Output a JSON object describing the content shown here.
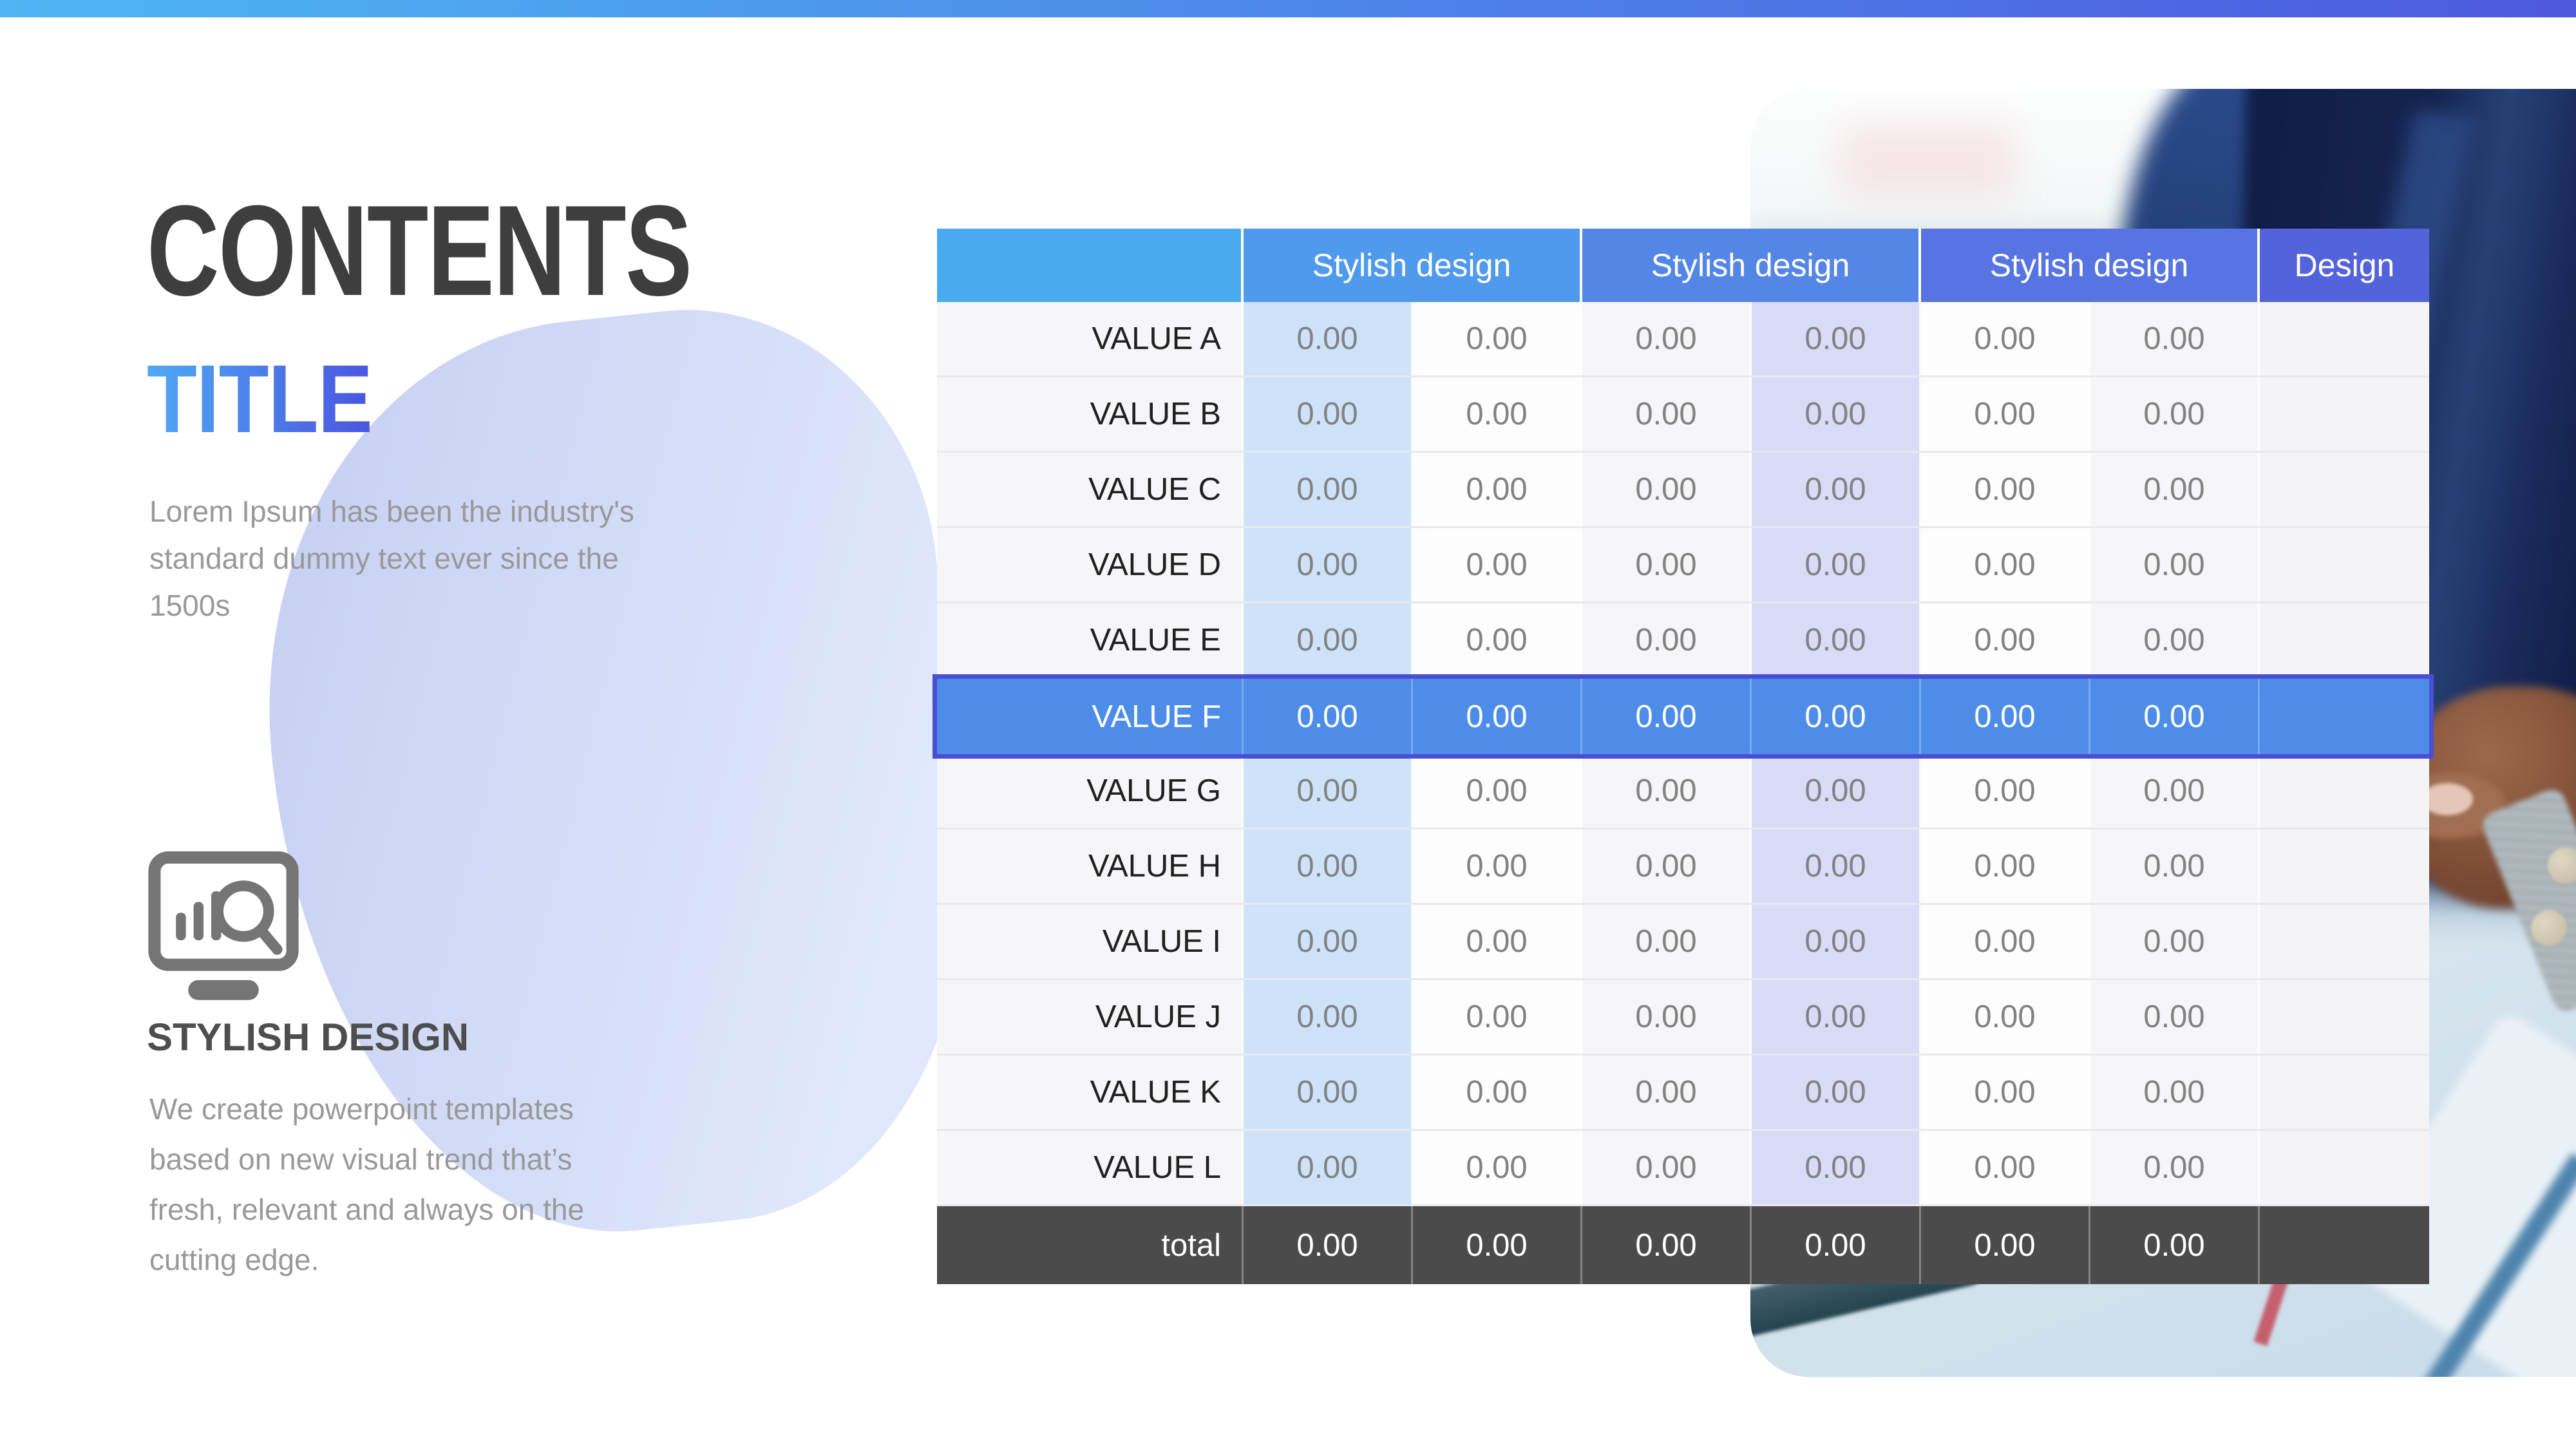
{
  "slide": {
    "kicker": "CONTENTS",
    "title": "TITLE",
    "intro": "Lorem Ipsum has been the industry's standard dummy text ever since the 1500s",
    "feature": {
      "icon": "chart-search-icon",
      "heading": "STYLISH DESIGN",
      "body": "We create powerpoint templates based on new visual trend that’s fresh, relevant and always on the cutting edge."
    }
  },
  "table": {
    "header_groups": [
      {
        "label": "",
        "span": 1
      },
      {
        "label": "Stylish design",
        "span": 2
      },
      {
        "label": "Stylish design",
        "span": 2
      },
      {
        "label": "Stylish design",
        "span": 2
      },
      {
        "label": "Design",
        "span": 1
      }
    ],
    "rows": [
      {
        "label": "VALUE A",
        "values": [
          "0.00",
          "0.00",
          "0.00",
          "0.00",
          "0.00",
          "0.00"
        ],
        "design": ""
      },
      {
        "label": "VALUE B",
        "values": [
          "0.00",
          "0.00",
          "0.00",
          "0.00",
          "0.00",
          "0.00"
        ],
        "design": ""
      },
      {
        "label": "VALUE C",
        "values": [
          "0.00",
          "0.00",
          "0.00",
          "0.00",
          "0.00",
          "0.00"
        ],
        "design": ""
      },
      {
        "label": "VALUE D",
        "values": [
          "0.00",
          "0.00",
          "0.00",
          "0.00",
          "0.00",
          "0.00"
        ],
        "design": ""
      },
      {
        "label": "VALUE E",
        "values": [
          "0.00",
          "0.00",
          "0.00",
          "0.00",
          "0.00",
          "0.00"
        ],
        "design": ""
      },
      {
        "label": "VALUE F",
        "values": [
          "0.00",
          "0.00",
          "0.00",
          "0.00",
          "0.00",
          "0.00"
        ],
        "design": ""
      },
      {
        "label": "VALUE G",
        "values": [
          "0.00",
          "0.00",
          "0.00",
          "0.00",
          "0.00",
          "0.00"
        ],
        "design": ""
      },
      {
        "label": "VALUE H",
        "values": [
          "0.00",
          "0.00",
          "0.00",
          "0.00",
          "0.00",
          "0.00"
        ],
        "design": ""
      },
      {
        "label": "VALUE I",
        "values": [
          "0.00",
          "0.00",
          "0.00",
          "0.00",
          "0.00",
          "0.00"
        ],
        "design": ""
      },
      {
        "label": "VALUE J",
        "values": [
          "0.00",
          "0.00",
          "0.00",
          "0.00",
          "0.00",
          "0.00"
        ],
        "design": ""
      },
      {
        "label": "VALUE K",
        "values": [
          "0.00",
          "0.00",
          "0.00",
          "0.00",
          "0.00",
          "0.00"
        ],
        "design": ""
      },
      {
        "label": "VALUE L",
        "values": [
          "0.00",
          "0.00",
          "0.00",
          "0.00",
          "0.00",
          "0.00"
        ],
        "design": ""
      }
    ],
    "highlighted_row": "VALUE F",
    "total_row": {
      "label": "total",
      "values": [
        "0.00",
        "0.00",
        "0.00",
        "0.00",
        "0.00",
        "0.00"
      ],
      "design": ""
    }
  },
  "colors": {
    "topbar_gradient": [
      "#4db6f3",
      "#4d59df"
    ],
    "title_gradient": [
      "#4ea9f5",
      "#4a55df"
    ],
    "header_colors": [
      "#49aaf0",
      "#4f9aec",
      "#5486e7",
      "#5674e2",
      "#5263dc"
    ],
    "stripe_blue": "#cee3f9",
    "stripe_lavender": "#d9dbf7",
    "highlight_bg": "#4d8de9",
    "highlight_border": "#4a4ed3",
    "total_bg": "#4b4b4b"
  }
}
